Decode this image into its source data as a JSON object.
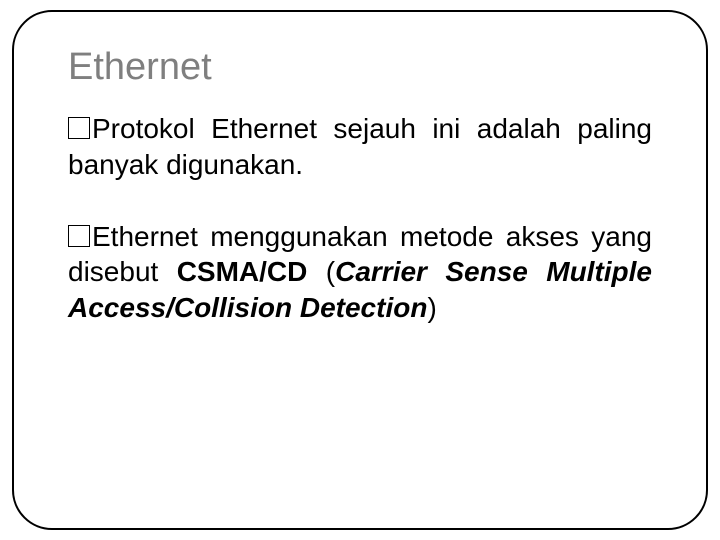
{
  "slide": {
    "title": "Ethernet",
    "title_color": "#7f7f7f",
    "title_fontsize": 38,
    "body_fontsize": 28,
    "text_color": "#000000",
    "border_color": "#000000",
    "border_radius": 40,
    "background_color": "#ffffff",
    "paragraphs": [
      {
        "runs": [
          {
            "text": "Protokol Ethernet sejauh ini adalah paling banyak digunakan.",
            "bold": false,
            "italic": false
          }
        ]
      },
      {
        "runs": [
          {
            "text": "Ethernet menggunakan metode akses yang disebut ",
            "bold": false,
            "italic": false
          },
          {
            "text": "CSMA/CD",
            "bold": true,
            "italic": false
          },
          {
            "text": " (",
            "bold": false,
            "italic": false
          },
          {
            "text": "Carrier Sense Multiple Access/Collision Detection",
            "bold": true,
            "italic": true
          },
          {
            "text": ")",
            "bold": false,
            "italic": false
          }
        ]
      }
    ]
  }
}
